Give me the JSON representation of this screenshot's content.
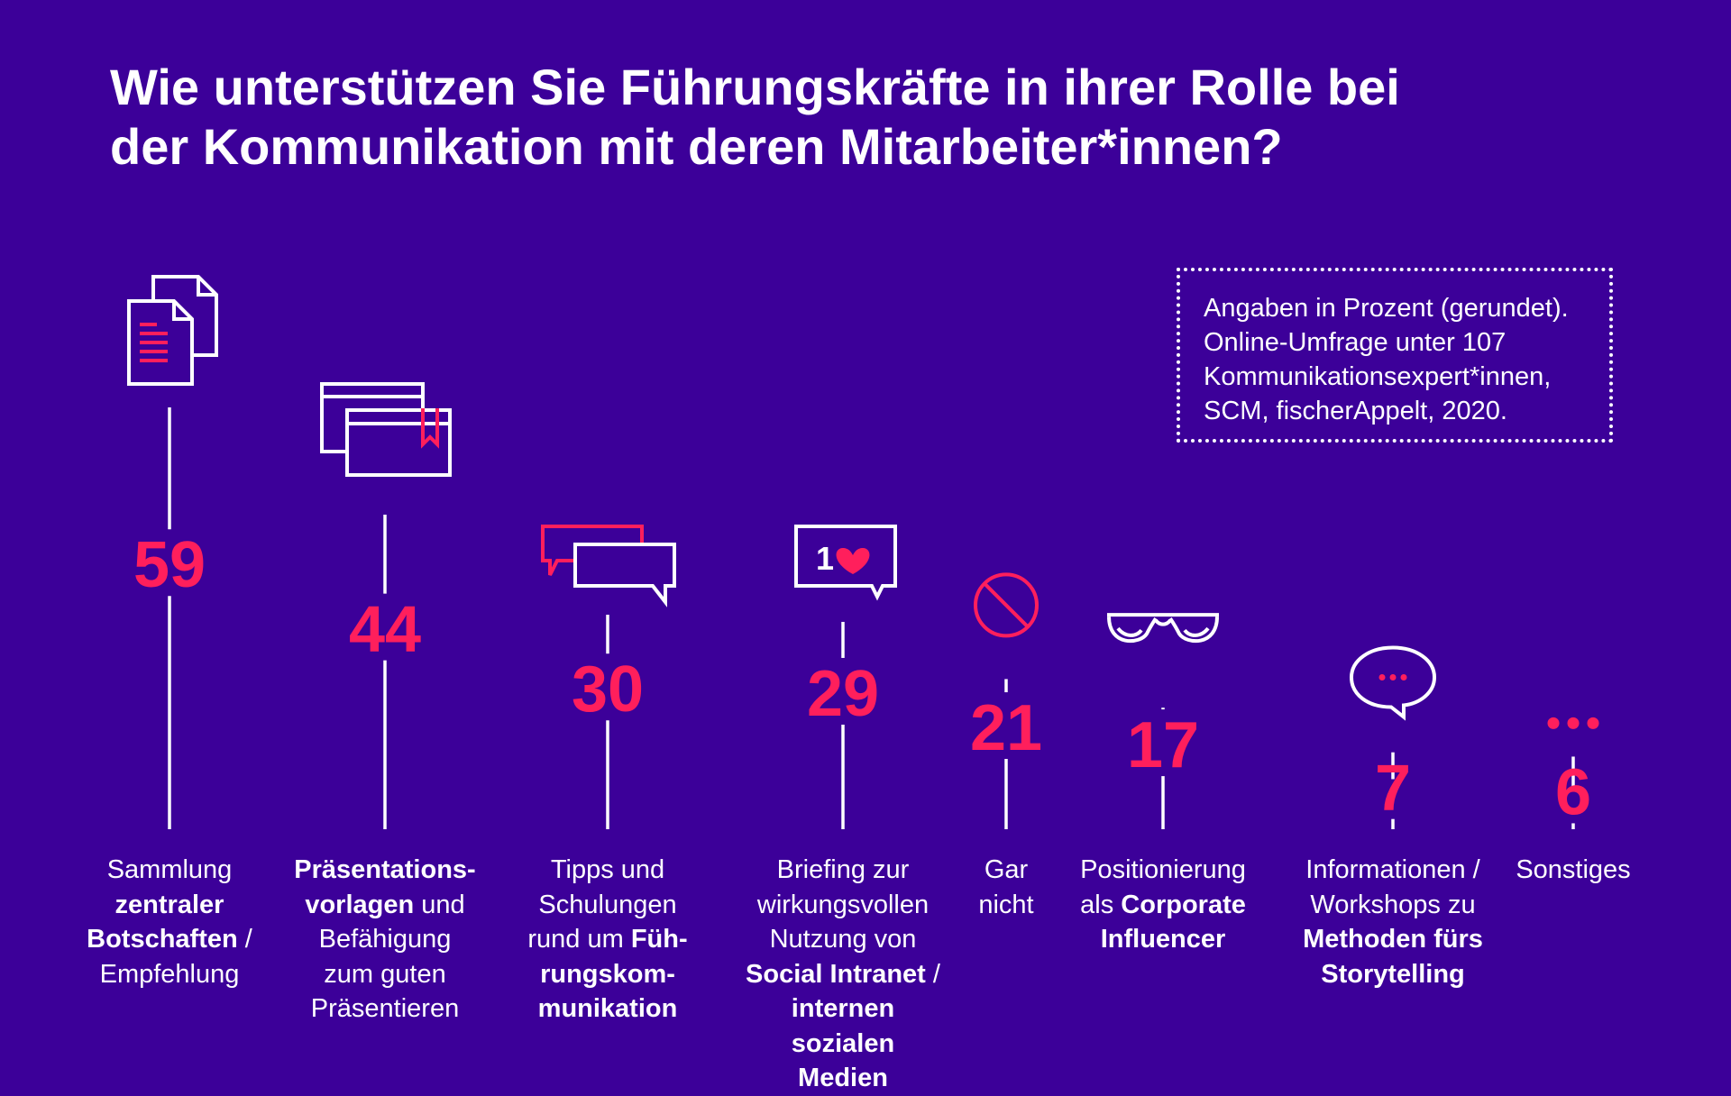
{
  "title": {
    "line1": "Wie unterstützen Sie Führungskräfte in ihrer Rolle bei",
    "line2": "der Kommunikation mit deren Mitarbeiter*innen?"
  },
  "note": {
    "lines": [
      "Angaben in Prozent (gerundet).",
      "Online-Umfrage unter 107",
      "Kommunikationsexpert*innen,",
      "SCM, fischerAppelt, 2020."
    ]
  },
  "colors": {
    "background": "#3c0099",
    "accent": "#ff1f5c",
    "line": "#ffffff"
  },
  "chart_data": {
    "type": "bar",
    "unit": "Prozent",
    "title": "Wie unterstützen Sie Führungskräfte in ihrer Rolle bei der Kommunikation mit deren Mitarbeiter*innen?",
    "categories": [
      "Sammlung zentraler Botschaften / Empfehlung",
      "Präsentationsvorlagen und Befähigung zum guten Präsentieren",
      "Tipps und Schulungen rund um Führungskommunikation",
      "Briefing zur wirkungsvollen Nutzung von Social Intranet / internen sozialen Medien",
      "Gar nicht",
      "Positionierung als Corporate Influencer",
      "Informationen / Workshops zu Methoden fürs Storytelling",
      "Sonstiges"
    ],
    "values": [
      59,
      44,
      30,
      29,
      21,
      17,
      7,
      6
    ],
    "ylim": [
      0,
      100
    ],
    "grid": false,
    "legend": "none",
    "icons": [
      "documents-icon",
      "presentation-slides-icon",
      "chat-bubbles-icon",
      "like-notification-icon",
      "prohibited-icon",
      "glasses-icon",
      "speech-bubble-icon",
      "ellipsis-icon"
    ],
    "labels": [
      [
        {
          "t": "Sammlung"
        },
        {
          "t": "zentraler",
          "b": true
        },
        {
          "t": "Botschaften",
          "b": true,
          "s": " / "
        },
        {
          "t": "Empfehlung"
        }
      ],
      [
        {
          "t": "Präsentations-",
          "b": true
        },
        {
          "t": "vorlagen",
          "b": true,
          "s": " und"
        },
        {
          "t": "Befähigung"
        },
        {
          "t": "zum guten"
        },
        {
          "t": "Präsentieren"
        }
      ],
      [
        {
          "t": "Tipps und"
        },
        {
          "t": "Schulungen"
        },
        {
          "t": "rund um ",
          "tb": "Füh-"
        },
        {
          "t": "rungskom-",
          "b": true
        },
        {
          "t": "munikation",
          "b": true
        }
      ],
      [
        {
          "t": "Briefing zur"
        },
        {
          "t": "wirkungsvollen"
        },
        {
          "t": "Nutzung von"
        },
        {
          "t": "Social Intranet",
          "b": true,
          "s": " /"
        },
        {
          "t": "internen",
          "b": true
        },
        {
          "t": "sozialen Medien",
          "b": true
        }
      ],
      [
        {
          "t": "Gar"
        },
        {
          "t": "nicht"
        }
      ],
      [
        {
          "t": "Positionierung"
        },
        {
          "t": "als ",
          "tb": "Corporate"
        },
        {
          "t": "Influencer",
          "b": true
        }
      ],
      [
        {
          "t": "Informationen /"
        },
        {
          "t": "Workshops zu"
        },
        {
          "t": "Methoden fürs",
          "b": true
        },
        {
          "t": "Storytelling",
          "b": true
        }
      ],
      [
        {
          "t": "Sonstiges"
        }
      ]
    ]
  }
}
